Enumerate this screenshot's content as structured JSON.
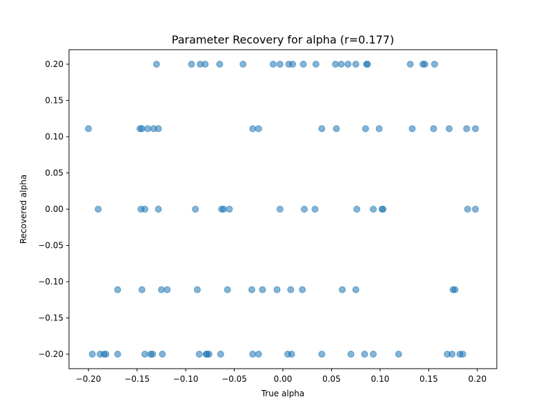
{
  "chart_data": {
    "type": "scatter",
    "title": "Parameter Recovery for alpha (r=0.177)",
    "xlabel": "True alpha",
    "ylabel": "Recovered alpha",
    "xlim": [
      -0.22,
      0.22
    ],
    "ylim": [
      -0.22,
      0.22
    ],
    "xticks": [
      -0.2,
      -0.15,
      -0.1,
      -0.05,
      0.0,
      0.05,
      0.1,
      0.15,
      0.2
    ],
    "xtick_labels": [
      "−0.20",
      "−0.15",
      "−0.10",
      "−0.05",
      "0.00",
      "0.05",
      "0.10",
      "0.15",
      "0.20"
    ],
    "yticks": [
      0.2,
      0.15,
      0.1,
      0.05,
      0.0,
      -0.05,
      -0.1,
      -0.15,
      -0.2
    ],
    "ytick_labels": [
      "0.20",
      "0.15",
      "0.10",
      "0.05",
      "0.00",
      "−0.05",
      "−0.10",
      "−0.15",
      "−0.20"
    ],
    "grid": false,
    "marker_color": "#1f77b4",
    "marker_alpha": 0.55,
    "series": [
      {
        "x": [
          -0.13,
          -0.094,
          -0.085,
          -0.08,
          -0.065,
          -0.041,
          -0.01,
          -0.003,
          0.006,
          0.01,
          0.021,
          0.034,
          0.054,
          0.06,
          0.067,
          0.075,
          0.086,
          0.087,
          0.131,
          0.144,
          0.146,
          0.156
        ],
        "y": [
          0.2,
          0.2,
          0.2,
          0.2,
          0.2,
          0.2,
          0.2,
          0.2,
          0.2,
          0.2,
          0.2,
          0.2,
          0.2,
          0.2,
          0.2,
          0.2,
          0.2,
          0.2,
          0.2,
          0.2,
          0.2,
          0.2
        ]
      },
      {
        "x": [
          -0.2,
          -0.147,
          -0.145,
          -0.139,
          -0.133,
          -0.128,
          -0.031,
          -0.025,
          0.04,
          0.055,
          0.085,
          0.099,
          0.133,
          0.155,
          0.171,
          0.189,
          0.198
        ],
        "y": [
          0.111,
          0.111,
          0.111,
          0.111,
          0.111,
          0.111,
          0.111,
          0.111,
          0.111,
          0.111,
          0.111,
          0.111,
          0.111,
          0.111,
          0.111,
          0.111,
          0.111
        ]
      },
      {
        "x": [
          -0.19,
          -0.146,
          -0.142,
          -0.128,
          -0.09,
          -0.063,
          -0.061,
          -0.055,
          -0.003,
          0.022,
          0.033,
          0.076,
          0.093,
          0.102,
          0.103,
          0.19,
          0.198
        ],
        "y": [
          0.0,
          0.0,
          0.0,
          0.0,
          0.0,
          0.0,
          0.0,
          0.0,
          0.0,
          0.0,
          0.0,
          0.0,
          0.0,
          0.0,
          0.0,
          0.0,
          0.0
        ]
      },
      {
        "x": [
          -0.17,
          -0.145,
          -0.125,
          -0.119,
          -0.088,
          -0.057,
          -0.032,
          -0.021,
          -0.006,
          0.008,
          0.02,
          0.061,
          0.075,
          0.175,
          0.177
        ],
        "y": [
          -0.111,
          -0.111,
          -0.111,
          -0.111,
          -0.111,
          -0.111,
          -0.111,
          -0.111,
          -0.111,
          -0.111,
          -0.111,
          -0.111,
          -0.111,
          -0.111,
          -0.111
        ]
      },
      {
        "x": [
          -0.196,
          -0.188,
          -0.184,
          -0.182,
          -0.17,
          -0.142,
          -0.136,
          -0.134,
          -0.124,
          -0.086,
          -0.079,
          -0.078,
          -0.076,
          -0.064,
          -0.031,
          -0.025,
          0.005,
          0.009,
          0.04,
          0.07,
          0.084,
          0.093,
          0.119,
          0.169,
          0.174,
          0.182,
          0.185
        ],
        "y": [
          -0.2,
          -0.2,
          -0.2,
          -0.2,
          -0.2,
          -0.2,
          -0.2,
          -0.2,
          -0.2,
          -0.2,
          -0.2,
          -0.2,
          -0.2,
          -0.2,
          -0.2,
          -0.2,
          -0.2,
          -0.2,
          -0.2,
          -0.2,
          -0.2,
          -0.2,
          -0.2,
          -0.2,
          -0.2,
          -0.2,
          -0.2
        ]
      }
    ]
  }
}
